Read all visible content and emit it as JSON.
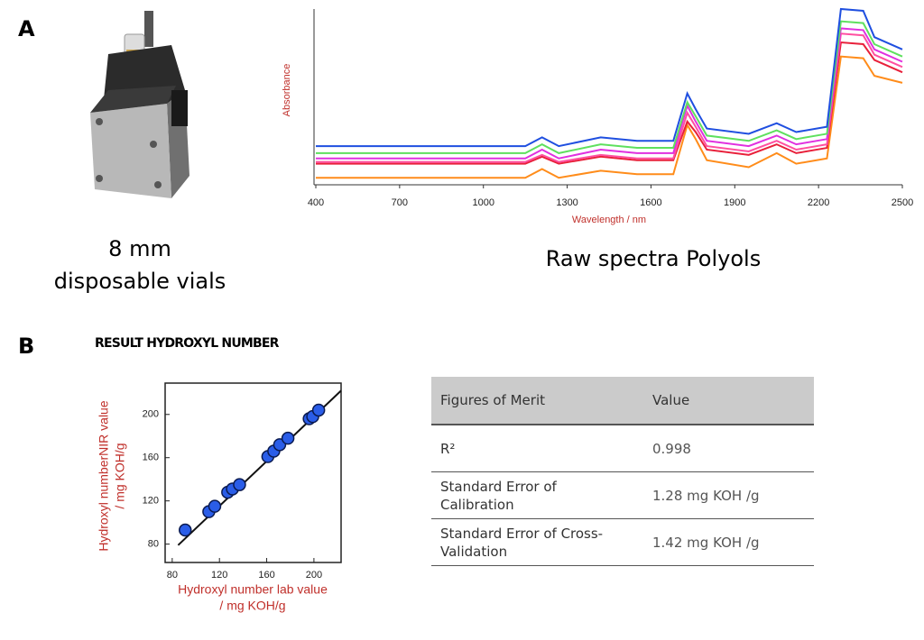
{
  "panel_a": {
    "label": "A",
    "vial_caption": [
      "8 mm",
      "disposable vials"
    ],
    "spectra_caption": "Raw spectra Polyols"
  },
  "panel_b": {
    "label": "B",
    "title": "RESULT HYDROXYL NUMBER"
  },
  "chart_data": [
    {
      "type": "line",
      "x_label": "Wavelength / nm",
      "y_label": "Absorbance",
      "x": [
        400,
        1150,
        1210,
        1270,
        1420,
        1550,
        1680,
        1730,
        1760,
        1800,
        1950,
        2050,
        2120,
        2230,
        2280,
        2360,
        2400,
        2500
      ],
      "xlim": [
        400,
        2500
      ],
      "xticks": [
        400,
        700,
        1000,
        1300,
        1600,
        1900,
        2200,
        2500
      ],
      "ylim": [
        0,
        1
      ],
      "series": [
        {
          "color": "#1f4fe0",
          "values": [
            0.22,
            0.22,
            0.27,
            0.22,
            0.27,
            0.25,
            0.25,
            0.52,
            0.43,
            0.32,
            0.29,
            0.35,
            0.3,
            0.33,
            1.0,
            0.99,
            0.84,
            0.77
          ]
        },
        {
          "color": "#5ee05e",
          "values": [
            0.18,
            0.18,
            0.23,
            0.18,
            0.23,
            0.21,
            0.21,
            0.47,
            0.39,
            0.28,
            0.25,
            0.31,
            0.26,
            0.29,
            0.93,
            0.92,
            0.8,
            0.73
          ]
        },
        {
          "color": "#e030e0",
          "values": [
            0.15,
            0.15,
            0.2,
            0.15,
            0.2,
            0.18,
            0.18,
            0.45,
            0.36,
            0.25,
            0.22,
            0.28,
            0.23,
            0.26,
            0.89,
            0.88,
            0.77,
            0.7
          ]
        },
        {
          "color": "#ff4fa0",
          "values": [
            0.13,
            0.13,
            0.17,
            0.13,
            0.17,
            0.15,
            0.15,
            0.41,
            0.33,
            0.22,
            0.19,
            0.25,
            0.2,
            0.23,
            0.86,
            0.85,
            0.74,
            0.67
          ]
        },
        {
          "color": "#e8203a",
          "values": [
            0.12,
            0.12,
            0.16,
            0.12,
            0.16,
            0.14,
            0.14,
            0.36,
            0.3,
            0.2,
            0.17,
            0.23,
            0.18,
            0.21,
            0.81,
            0.8,
            0.71,
            0.64
          ]
        },
        {
          "color": "#ff8c1a",
          "values": [
            0.04,
            0.04,
            0.09,
            0.04,
            0.08,
            0.06,
            0.06,
            0.34,
            0.26,
            0.14,
            0.1,
            0.18,
            0.12,
            0.15,
            0.73,
            0.72,
            0.62,
            0.58
          ]
        }
      ]
    },
    {
      "type": "scatter",
      "x_label": [
        "Hydroxyl number  lab value",
        "/ mg KOH/g"
      ],
      "y_label": [
        "Hydroxyl numberNIR value",
        "/ mg KOH/g"
      ],
      "x": [
        91,
        111,
        116,
        127,
        131,
        137,
        161,
        166,
        171,
        178,
        196,
        199,
        204
      ],
      "y": [
        93,
        110,
        115,
        128,
        131,
        135,
        161,
        166,
        172,
        178,
        196,
        198,
        204
      ],
      "xlim": [
        74,
        223
      ],
      "ylim": [
        63,
        229
      ],
      "xticks": [
        80,
        120,
        160,
        200
      ],
      "yticks": [
        80,
        120,
        160,
        200
      ],
      "color": "#2a5de8",
      "fit_line": {
        "x": [
          85,
          223
        ],
        "y": [
          79,
          222
        ]
      }
    }
  ],
  "table": {
    "header": [
      "Figures of Merit",
      "Value"
    ],
    "rows": [
      [
        "R²",
        "0.998"
      ],
      [
        "Standard Error of Calibration",
        "1.28 mg KOH /g"
      ],
      [
        "Standard Error of Cross-Validation",
        "1.42 mg KOH /g"
      ]
    ]
  }
}
